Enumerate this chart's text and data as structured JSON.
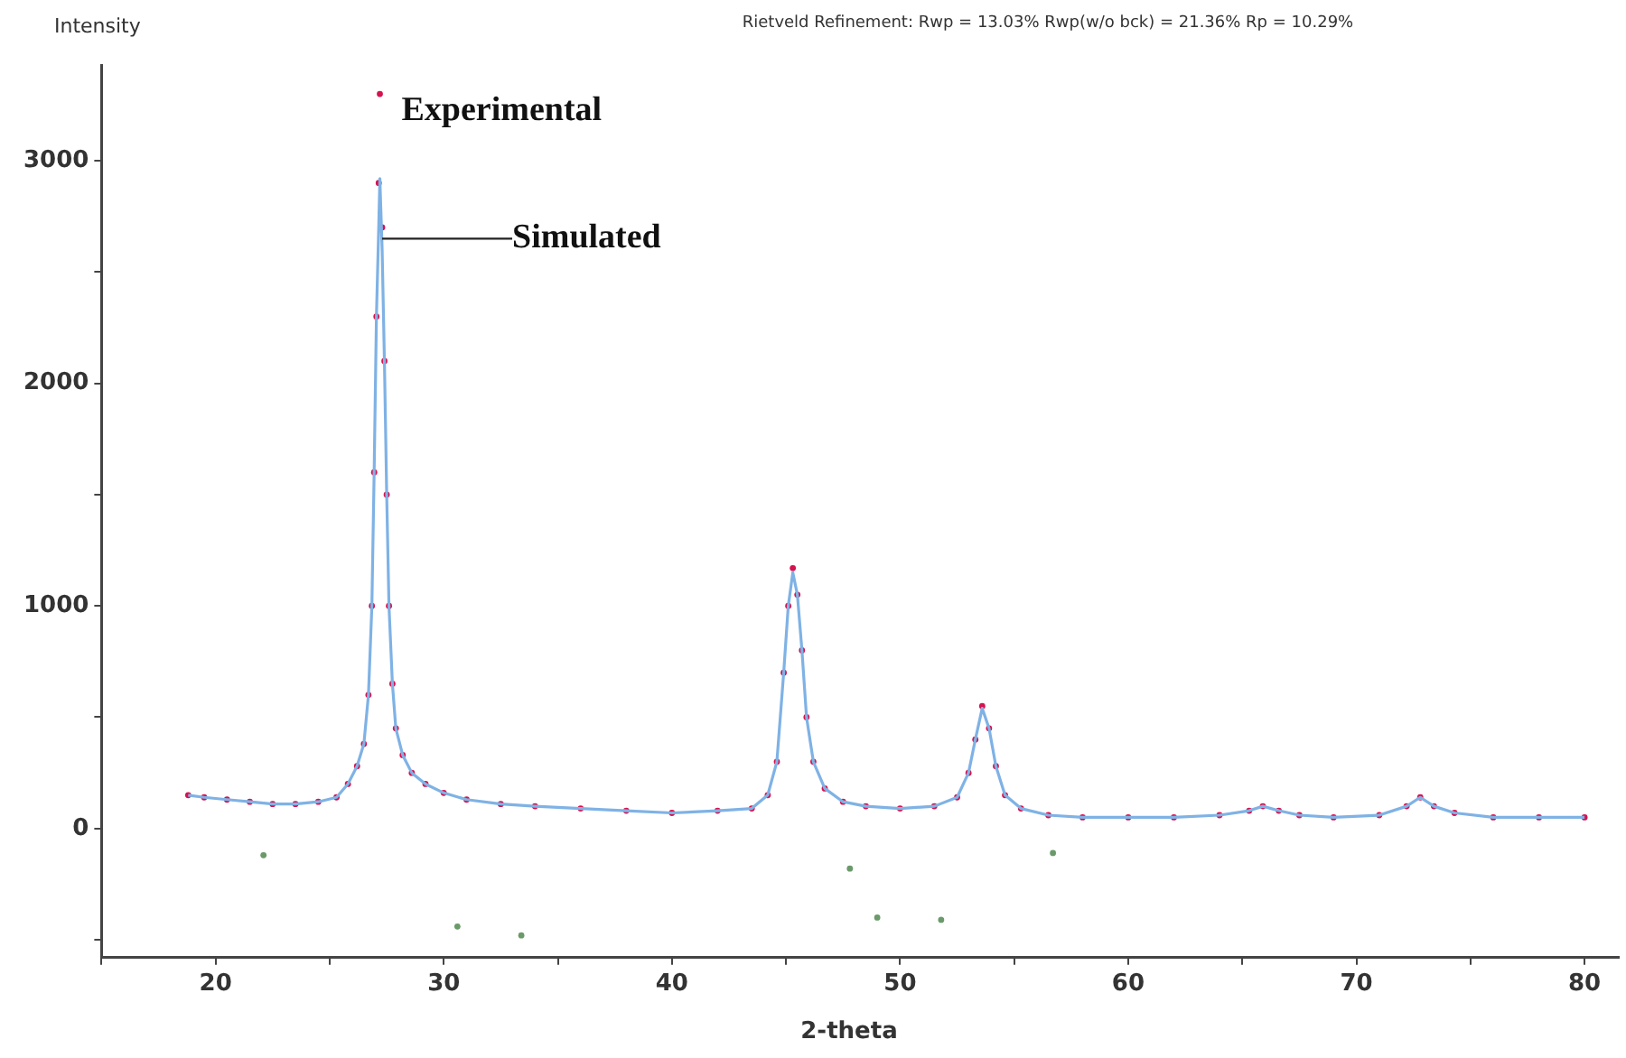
{
  "chart_data": {
    "type": "scatter",
    "title": "Rietveld Refinement:  Rwp = 13.03%   Rwp(w/o bck) = 21.36%   Rp = 10.29%",
    "xlabel": "2-theta",
    "ylabel": "Intensity",
    "xlim": [
      15,
      81.5
    ],
    "xticks": [
      {
        "value": 15,
        "label": null
      },
      20,
      {
        "value": 25,
        "label": null
      },
      30,
      {
        "value": 35,
        "label": null
      },
      40,
      {
        "value": 45,
        "label": null
      },
      50,
      {
        "value": 55,
        "label": null
      },
      60,
      {
        "value": 65,
        "label": null
      },
      70,
      {
        "value": 75,
        "label": null
      },
      80
    ],
    "ylim": [
      -580,
      3430
    ],
    "yticks": [
      {
        "value": -500,
        "label": null
      },
      0,
      {
        "value": 500,
        "label": null
      },
      1000,
      {
        "value": 1500,
        "label": null
      },
      2000,
      {
        "value": 2500,
        "label": null
      },
      3000
    ],
    "grid": false,
    "legend": false,
    "annotations": [
      {
        "text": "Experimental",
        "x": 27.2,
        "y": 3300
      },
      {
        "text": "Simulated",
        "x": 27.3,
        "y": 2650
      }
    ],
    "series": [
      {
        "type": "line",
        "marker": "none",
        "color": "#7fb2e5",
        "x": [
          18.8,
          19.5,
          20.5,
          21.5,
          22.5,
          23.5,
          24.5,
          25.3,
          25.8,
          26.2,
          26.5,
          26.7,
          26.85,
          26.95,
          27.05,
          27.15,
          27.2,
          27.3,
          27.4,
          27.5,
          27.6,
          27.75,
          27.9,
          28.2,
          28.6,
          29.2,
          30,
          31,
          32.5,
          34,
          36,
          38,
          40,
          42,
          43.5,
          44.2,
          44.6,
          44.9,
          45.1,
          45.3,
          45.5,
          45.7,
          45.9,
          46.2,
          46.7,
          47.5,
          48.5,
          50,
          51.5,
          52.5,
          53,
          53.3,
          53.6,
          53.9,
          54.2,
          54.6,
          55.3,
          56.5,
          58,
          60,
          62,
          64,
          65.3,
          65.9,
          66.6,
          67.5,
          69,
          71,
          72.2,
          72.8,
          73.4,
          74.3,
          76,
          78,
          80
        ],
        "values": [
          150,
          140,
          130,
          120,
          110,
          110,
          120,
          140,
          200,
          280,
          380,
          600,
          1000,
          1600,
          2300,
          2700,
          2920,
          2600,
          2100,
          1500,
          1000,
          650,
          450,
          330,
          250,
          200,
          160,
          130,
          110,
          100,
          90,
          80,
          70,
          80,
          90,
          150,
          300,
          700,
          1000,
          1150,
          1050,
          800,
          500,
          300,
          180,
          120,
          100,
          90,
          100,
          140,
          250,
          400,
          540,
          450,
          280,
          150,
          90,
          60,
          50,
          50,
          50,
          60,
          80,
          100,
          80,
          60,
          50,
          60,
          100,
          140,
          100,
          70,
          50,
          50,
          50
        ]
      },
      {
        "marker": "circle",
        "color": "#d6124f",
        "x": [
          18.8,
          19.5,
          20.5,
          21.5,
          22.5,
          23.5,
          24.5,
          25.3,
          25.8,
          26.2,
          26.5,
          26.7,
          26.85,
          26.95,
          27.05,
          27.15,
          27.2,
          27.3,
          27.4,
          27.5,
          27.6,
          27.75,
          27.9,
          28.2,
          28.6,
          29.2,
          30,
          31,
          32.5,
          34,
          36,
          38,
          40,
          42,
          43.5,
          44.2,
          44.6,
          44.9,
          45.1,
          45.3,
          45.5,
          45.7,
          45.9,
          46.2,
          46.7,
          47.5,
          48.5,
          50,
          51.5,
          52.5,
          53,
          53.3,
          53.6,
          53.9,
          54.2,
          54.6,
          55.3,
          56.5,
          58,
          60,
          62,
          64,
          65.3,
          65.9,
          66.6,
          67.5,
          69,
          71,
          72.2,
          72.8,
          73.4,
          74.3,
          76,
          78,
          80
        ],
        "values": [
          150,
          140,
          130,
          120,
          110,
          110,
          120,
          140,
          200,
          280,
          380,
          600,
          1000,
          1600,
          2300,
          2900,
          3300,
          2700,
          2100,
          1500,
          1000,
          650,
          450,
          330,
          250,
          200,
          160,
          130,
          110,
          100,
          90,
          80,
          70,
          80,
          90,
          150,
          300,
          700,
          1000,
          1170,
          1050,
          800,
          500,
          300,
          180,
          120,
          100,
          90,
          100,
          140,
          250,
          400,
          550,
          450,
          280,
          150,
          90,
          60,
          50,
          50,
          50,
          60,
          80,
          100,
          80,
          60,
          50,
          60,
          100,
          140,
          100,
          70,
          50,
          50,
          50
        ]
      },
      {
        "marker": "circle",
        "color": "#6a9a6a",
        "x": [
          22.1,
          30.6,
          33.4,
          47.8,
          49.0,
          51.8,
          56.7
        ],
        "values": [
          -120,
          -440,
          -480,
          -180,
          -400,
          -410,
          -110
        ]
      }
    ]
  }
}
